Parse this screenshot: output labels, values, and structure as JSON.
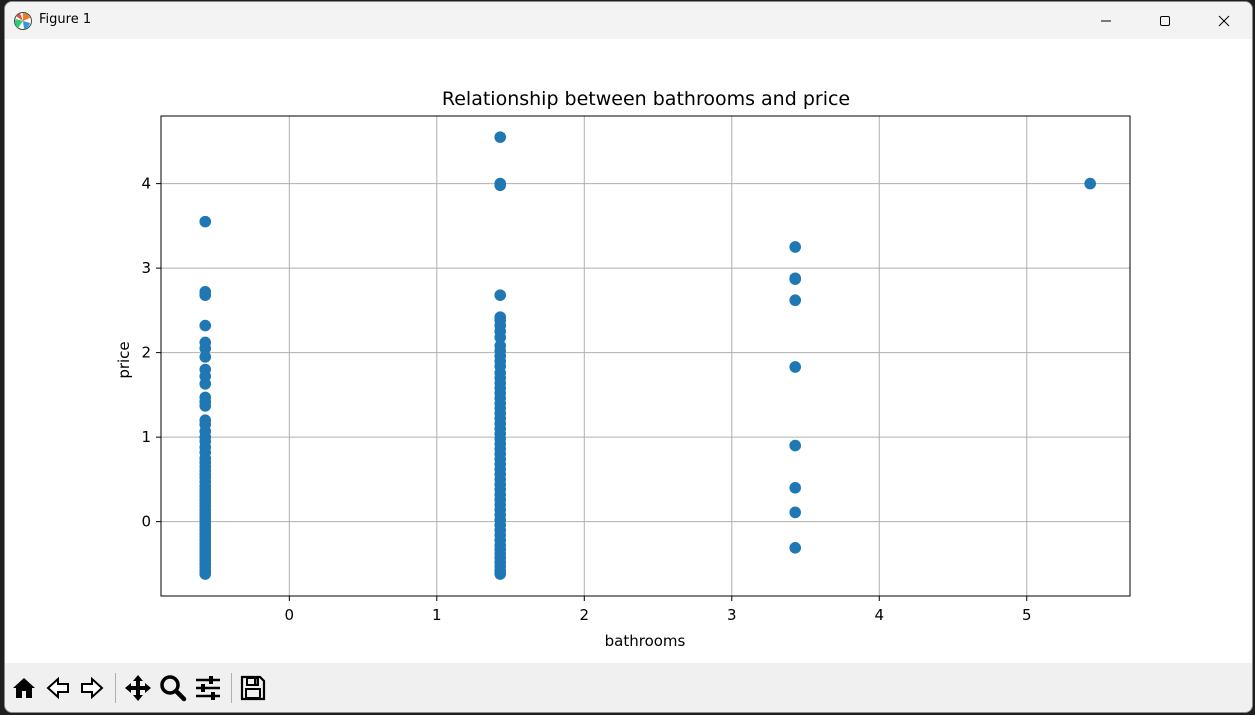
{
  "window": {
    "title": "Figure 1",
    "icons": [
      "matplotlib-icon",
      "minimize-icon",
      "maximize-icon",
      "close-icon"
    ]
  },
  "toolbar": {
    "buttons": [
      "home-icon",
      "back-icon",
      "forward-icon",
      "pan-icon",
      "zoom-icon",
      "configure-subplots-icon",
      "save-icon"
    ]
  },
  "chart_data": {
    "type": "scatter",
    "title": "Relationship between bathrooms and price",
    "xlabel": "bathrooms",
    "ylabel": "price",
    "xlim": [
      -0.87,
      5.7
    ],
    "ylim": [
      -0.88,
      4.8
    ],
    "xticks": [
      0,
      1,
      2,
      3,
      4,
      5
    ],
    "yticks": [
      0,
      1,
      2,
      3,
      4
    ],
    "grid": true,
    "color": "#1f77b4",
    "points": [
      [
        -0.57,
        -0.62
      ],
      [
        -0.57,
        -0.58
      ],
      [
        -0.57,
        -0.54
      ],
      [
        -0.57,
        -0.5
      ],
      [
        -0.57,
        -0.46
      ],
      [
        -0.57,
        -0.42
      ],
      [
        -0.57,
        -0.38
      ],
      [
        -0.57,
        -0.34
      ],
      [
        -0.57,
        -0.3
      ],
      [
        -0.57,
        -0.26
      ],
      [
        -0.57,
        -0.22
      ],
      [
        -0.57,
        -0.18
      ],
      [
        -0.57,
        -0.14
      ],
      [
        -0.57,
        -0.1
      ],
      [
        -0.57,
        -0.06
      ],
      [
        -0.57,
        -0.02
      ],
      [
        -0.57,
        0.02
      ],
      [
        -0.57,
        0.06
      ],
      [
        -0.57,
        0.1
      ],
      [
        -0.57,
        0.14
      ],
      [
        -0.57,
        0.18
      ],
      [
        -0.57,
        0.22
      ],
      [
        -0.57,
        0.26
      ],
      [
        -0.57,
        0.3
      ],
      [
        -0.57,
        0.34
      ],
      [
        -0.57,
        0.38
      ],
      [
        -0.57,
        0.42
      ],
      [
        -0.57,
        0.47
      ],
      [
        -0.57,
        0.52
      ],
      [
        -0.57,
        0.56
      ],
      [
        -0.57,
        0.6
      ],
      [
        -0.57,
        0.65
      ],
      [
        -0.57,
        0.7
      ],
      [
        -0.57,
        0.75
      ],
      [
        -0.57,
        0.82
      ],
      [
        -0.57,
        0.88
      ],
      [
        -0.57,
        0.95
      ],
      [
        -0.57,
        1.0
      ],
      [
        -0.57,
        1.07
      ],
      [
        -0.57,
        1.15
      ],
      [
        -0.57,
        1.2
      ],
      [
        -0.57,
        1.37
      ],
      [
        -0.57,
        1.42
      ],
      [
        -0.57,
        1.47
      ],
      [
        -0.57,
        1.63
      ],
      [
        -0.57,
        1.72
      ],
      [
        -0.57,
        1.8
      ],
      [
        -0.57,
        1.95
      ],
      [
        -0.57,
        2.05
      ],
      [
        -0.57,
        2.12
      ],
      [
        -0.57,
        2.32
      ],
      [
        -0.57,
        2.68
      ],
      [
        -0.57,
        2.72
      ],
      [
        -0.57,
        3.55
      ],
      [
        1.43,
        -0.62
      ],
      [
        1.43,
        -0.58
      ],
      [
        1.43,
        -0.53
      ],
      [
        1.43,
        -0.48
      ],
      [
        1.43,
        -0.43
      ],
      [
        1.43,
        -0.38
      ],
      [
        1.43,
        -0.33
      ],
      [
        1.43,
        -0.28
      ],
      [
        1.43,
        -0.22
      ],
      [
        1.43,
        -0.16
      ],
      [
        1.43,
        -0.1
      ],
      [
        1.43,
        -0.04
      ],
      [
        1.43,
        0.02
      ],
      [
        1.43,
        0.08
      ],
      [
        1.43,
        0.14
      ],
      [
        1.43,
        0.2
      ],
      [
        1.43,
        0.26
      ],
      [
        1.43,
        0.32
      ],
      [
        1.43,
        0.38
      ],
      [
        1.43,
        0.44
      ],
      [
        1.43,
        0.5
      ],
      [
        1.43,
        0.56
      ],
      [
        1.43,
        0.62
      ],
      [
        1.43,
        0.68
      ],
      [
        1.43,
        0.74
      ],
      [
        1.43,
        0.8
      ],
      [
        1.43,
        0.86
      ],
      [
        1.43,
        0.92
      ],
      [
        1.43,
        0.98
      ],
      [
        1.43,
        1.04
      ],
      [
        1.43,
        1.1
      ],
      [
        1.43,
        1.16
      ],
      [
        1.43,
        1.22
      ],
      [
        1.43,
        1.28
      ],
      [
        1.43,
        1.34
      ],
      [
        1.43,
        1.4
      ],
      [
        1.43,
        1.46
      ],
      [
        1.43,
        1.52
      ],
      [
        1.43,
        1.58
      ],
      [
        1.43,
        1.64
      ],
      [
        1.43,
        1.7
      ],
      [
        1.43,
        1.76
      ],
      [
        1.43,
        1.84
      ],
      [
        1.43,
        1.9
      ],
      [
        1.43,
        1.96
      ],
      [
        1.43,
        2.02
      ],
      [
        1.43,
        2.08
      ],
      [
        1.43,
        2.18
      ],
      [
        1.43,
        2.25
      ],
      [
        1.43,
        2.32
      ],
      [
        1.43,
        2.38
      ],
      [
        1.43,
        2.42
      ],
      [
        1.43,
        2.68
      ],
      [
        1.43,
        3.98
      ],
      [
        1.43,
        4.0
      ],
      [
        1.43,
        4.55
      ],
      [
        3.43,
        -0.31
      ],
      [
        3.43,
        0.11
      ],
      [
        3.43,
        0.4
      ],
      [
        3.43,
        0.9
      ],
      [
        3.43,
        1.83
      ],
      [
        3.43,
        2.62
      ],
      [
        3.43,
        2.87
      ],
      [
        3.43,
        2.88
      ],
      [
        3.43,
        3.25
      ],
      [
        5.43,
        4.0
      ]
    ]
  }
}
